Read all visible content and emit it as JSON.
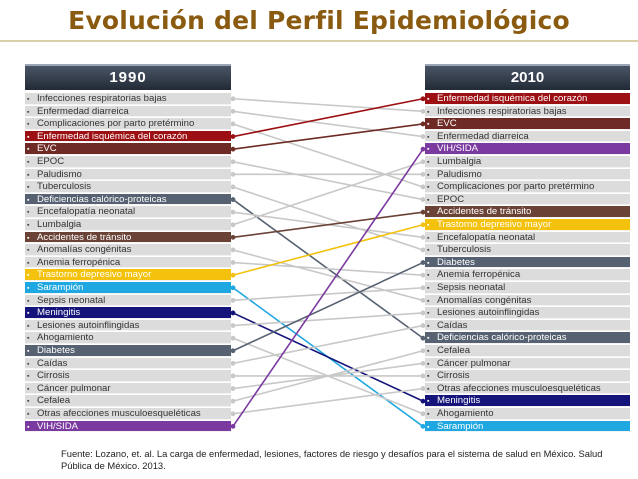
{
  "title": "Evolución del Perfil Epidemiológico",
  "year_left": "1990",
  "year_right": "2010",
  "colors": {
    "dark_red": "#9c0f12",
    "maroon": "#6e2a25",
    "purple": "#7b3aa0",
    "slate": "#566171",
    "brown": "#6b4336",
    "yellow": "#f4c20d",
    "cyan": "#1ea7e0",
    "navy": "#14147a",
    "grey_line": "#c8c8c8"
  },
  "left_list": [
    {
      "label": "Infecciones respiratorias bajas"
    },
    {
      "label": "Enfermedad diarreica"
    },
    {
      "label": "Complicaciones por parto pretérmino"
    },
    {
      "label": "Enfermedad isquémica del corazón",
      "color": "#9c0f12"
    },
    {
      "label": "EVC",
      "color": "#6e2a25"
    },
    {
      "label": "EPOC"
    },
    {
      "label": "Paludismo"
    },
    {
      "label": "Tuberculosis"
    },
    {
      "label": "Deficiencias calórico-proteicas",
      "color": "#566171"
    },
    {
      "label": "Encefalopatía neonatal"
    },
    {
      "label": "Lumbalgia"
    },
    {
      "label": "Accidentes de tránsito",
      "color": "#6b4336"
    },
    {
      "label": "Anomalías congénitas"
    },
    {
      "label": "Anemia ferropénica"
    },
    {
      "label": "Trastorno depresivo mayor",
      "color": "#f4c20d",
      "dark_text": true
    },
    {
      "label": "Sarampión",
      "color": "#1ea7e0"
    },
    {
      "label": "Sepsis neonatal"
    },
    {
      "label": "Meningitis",
      "color": "#14147a"
    },
    {
      "label": "Lesiones autoinflingidas"
    },
    {
      "label": "Ahogamiento"
    },
    {
      "label": "Diabetes",
      "color": "#566171"
    },
    {
      "label": "Caídas"
    },
    {
      "label": "Cirrosis"
    },
    {
      "label": "Cáncer pulmonar"
    },
    {
      "label": "Cefalea"
    },
    {
      "label": "Otras afecciones musculoesqueléticas"
    },
    {
      "label": "VIH/SIDA",
      "color": "#7b3aa0"
    }
  ],
  "right_list": [
    {
      "label": "Enfermedad isquémica del corazón",
      "color": "#9c0f12"
    },
    {
      "label": "Infecciones respiratorias bajas"
    },
    {
      "label": "EVC",
      "color": "#6e2a25"
    },
    {
      "label": "Enfermedad diarreica"
    },
    {
      "label": "VIH/SIDA",
      "color": "#7b3aa0"
    },
    {
      "label": "Lumbalgia"
    },
    {
      "label": "Paludismo"
    },
    {
      "label": "Complicaciones por parto pretérmino"
    },
    {
      "label": "EPOC"
    },
    {
      "label": "Accidentes de tránsito",
      "color": "#6b4336"
    },
    {
      "label": "Trastorno depresivo mayor",
      "color": "#f4c20d"
    },
    {
      "label": "Encefalopatía neonatal"
    },
    {
      "label": "Tuberculosis"
    },
    {
      "label": "Diabetes",
      "color": "#566171"
    },
    {
      "label": "Anemia ferropénica"
    },
    {
      "label": "Sepsis neonatal"
    },
    {
      "label": "Anomalías congénitas"
    },
    {
      "label": "Lesiones autoinflingidas"
    },
    {
      "label": "Caídas"
    },
    {
      "label": "Deficiencias calórico-proteicas",
      "color": "#566171"
    },
    {
      "label": "Cefalea"
    },
    {
      "label": "Cáncer pulmonar"
    },
    {
      "label": "Cirrosis"
    },
    {
      "label": "Otras afecciones musculoesqueléticas"
    },
    {
      "label": "Meningitis",
      "color": "#14147a"
    },
    {
      "label": "Ahogamiento"
    },
    {
      "label": "Sarampión",
      "color": "#1ea7e0"
    }
  ],
  "source": "Fuente: Lozano, et. al. La carga de enfermedad, lesiones, factores de riesgo y desafíos para el sistema de salud en México. Salud Pública de México. 2013."
}
